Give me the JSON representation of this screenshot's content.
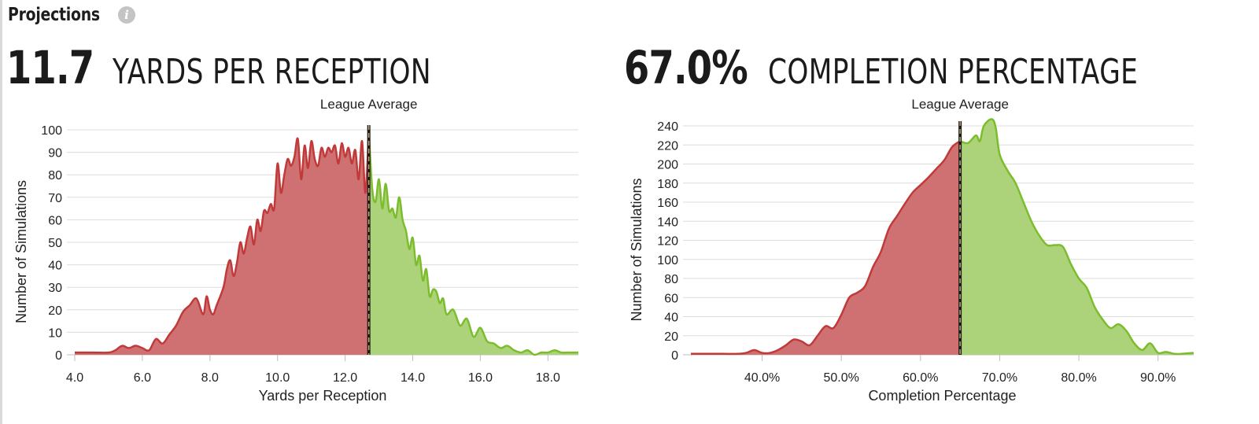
{
  "header": {
    "title": "Projections"
  },
  "colors": {
    "below": "#c03a3a",
    "below_fill": "#cf7172",
    "above": "#7bbd2c",
    "above_fill": "#add37a",
    "grid": "#dcdcdc"
  },
  "chart_data": [
    {
      "type": "area",
      "headline_value": "11.7",
      "headline_label": "YARDS PER RECEPTION",
      "reference_label": "League Average",
      "reference_x": 12.7,
      "xlabel": "Yards per Reception",
      "ylabel": "Number of Simulations",
      "xlim": [
        4.0,
        18.9
      ],
      "ylim": [
        0,
        100
      ],
      "xticks": [
        4.0,
        6.0,
        8.0,
        10.0,
        12.0,
        14.0,
        16.0,
        18.0
      ],
      "xtick_labels": [
        "4.0",
        "6.0",
        "8.0",
        "10.0",
        "12.0",
        "14.0",
        "16.0",
        "18.0"
      ],
      "yticks": [
        0,
        10,
        20,
        30,
        40,
        50,
        60,
        70,
        80,
        90,
        100
      ],
      "grid": true,
      "series": [
        {
          "x": [
            4.0,
            4.5,
            5.0,
            5.2,
            5.4,
            5.6,
            5.8,
            6.0,
            6.2,
            6.4,
            6.6,
            6.8,
            7.0,
            7.2,
            7.4,
            7.6,
            7.8,
            7.9,
            8.0,
            8.1,
            8.2,
            8.4,
            8.5,
            8.6,
            8.7,
            8.8,
            8.9,
            9.0,
            9.1,
            9.2,
            9.3,
            9.4,
            9.5,
            9.6,
            9.7,
            9.8,
            9.9,
            10.0,
            10.1,
            10.2,
            10.3,
            10.4,
            10.5,
            10.6,
            10.7,
            10.8,
            10.9,
            11.0,
            11.1,
            11.2,
            11.3,
            11.4,
            11.5,
            11.6,
            11.7,
            11.8,
            11.9,
            12.0,
            12.1,
            12.2,
            12.3,
            12.4,
            12.5,
            12.6,
            12.7,
            12.8,
            12.9,
            13.0,
            13.1,
            13.2,
            13.3,
            13.4,
            13.5,
            13.6,
            13.7,
            13.8,
            13.9,
            14.0,
            14.1,
            14.2,
            14.3,
            14.4,
            14.5,
            14.6,
            14.7,
            14.8,
            14.9,
            15.0,
            15.2,
            15.4,
            15.6,
            15.8,
            16.0,
            16.2,
            16.4,
            16.6,
            16.8,
            17.0,
            17.2,
            17.4,
            17.6,
            17.8,
            18.0,
            18.2,
            18.4,
            18.6,
            18.9
          ],
          "values": [
            1,
            1,
            1,
            2,
            4,
            3,
            4,
            3,
            2,
            7,
            5,
            9,
            13,
            19,
            22,
            25,
            18,
            26,
            20,
            18,
            22,
            30,
            38,
            42,
            35,
            41,
            50,
            45,
            52,
            57,
            49,
            60,
            55,
            64,
            63,
            67,
            65,
            85,
            72,
            80,
            87,
            84,
            88,
            96,
            78,
            93,
            83,
            95,
            87,
            84,
            92,
            88,
            92,
            90,
            93,
            85,
            94,
            88,
            92,
            85,
            91,
            78,
            95,
            72,
            100,
            74,
            68,
            78,
            65,
            76,
            64,
            65,
            61,
            70,
            60,
            55,
            47,
            52,
            40,
            44,
            33,
            38,
            26,
            29,
            28,
            23,
            25,
            18,
            20,
            13,
            16,
            8,
            12,
            6,
            5,
            3,
            4,
            2,
            1,
            2,
            0,
            1,
            1,
            2,
            1,
            1,
            1
          ]
        }
      ]
    },
    {
      "type": "area",
      "headline_value": "67.0%",
      "headline_label": "COMPLETION PERCENTAGE",
      "reference_label": "League Average",
      "reference_x": 65.0,
      "xlabel": "Completion Percentage",
      "ylabel": "Number of Simulations",
      "xlim": [
        31.0,
        94.5
      ],
      "ylim": [
        0,
        240
      ],
      "xticks": [
        40,
        50,
        60,
        70,
        80,
        90
      ],
      "xtick_labels": [
        "40.0%",
        "50.0%",
        "60.0%",
        "70.0%",
        "80.0%",
        "90.0%"
      ],
      "yticks": [
        0,
        20,
        40,
        60,
        80,
        100,
        120,
        140,
        160,
        180,
        200,
        220,
        240
      ],
      "grid": true,
      "series": [
        {
          "x": [
            31,
            33,
            35,
            37,
            38,
            39,
            40,
            41,
            42,
            43,
            44,
            45,
            46,
            47,
            48,
            49,
            50,
            51,
            52,
            53,
            54,
            55,
            56,
            57,
            58,
            59,
            60,
            61,
            62,
            63,
            64,
            65,
            66,
            67,
            67.5,
            68,
            69,
            69.5,
            70,
            71,
            72,
            73,
            74,
            75,
            76,
            77,
            78,
            79,
            80,
            81,
            82,
            83,
            84,
            85,
            86,
            87,
            88,
            89,
            90,
            91,
            92,
            93,
            94.5
          ],
          "values": [
            1,
            1,
            1,
            1,
            2,
            5,
            2,
            2,
            5,
            10,
            16,
            14,
            10,
            20,
            30,
            28,
            42,
            60,
            65,
            72,
            92,
            108,
            132,
            145,
            158,
            170,
            178,
            186,
            195,
            204,
            218,
            224,
            222,
            230,
            224,
            240,
            247,
            238,
            210,
            193,
            180,
            160,
            140,
            125,
            115,
            115,
            113,
            95,
            80,
            70,
            50,
            37,
            28,
            32,
            25,
            12,
            5,
            12,
            2,
            3,
            1,
            1,
            2
          ]
        }
      ]
    }
  ]
}
